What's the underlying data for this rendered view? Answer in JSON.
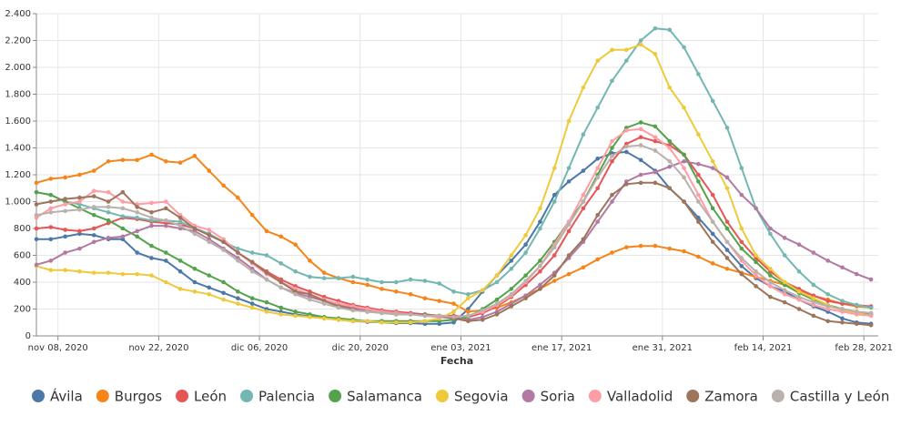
{
  "chart_data": {
    "type": "line",
    "x_label": "Fecha",
    "x": [
      "2020-11-05",
      "2020-11-07",
      "2020-11-09",
      "2020-11-11",
      "2020-11-13",
      "2020-11-15",
      "2020-11-17",
      "2020-11-19",
      "2020-11-21",
      "2020-11-23",
      "2020-11-25",
      "2020-11-27",
      "2020-11-29",
      "2020-12-01",
      "2020-12-03",
      "2020-12-05",
      "2020-12-07",
      "2020-12-09",
      "2020-12-11",
      "2020-12-13",
      "2020-12-15",
      "2020-12-17",
      "2020-12-19",
      "2020-12-21",
      "2020-12-23",
      "2020-12-25",
      "2020-12-27",
      "2020-12-29",
      "2020-12-31",
      "2021-01-02",
      "2021-01-04",
      "2021-01-06",
      "2021-01-08",
      "2021-01-10",
      "2021-01-12",
      "2021-01-14",
      "2021-01-16",
      "2021-01-18",
      "2021-01-20",
      "2021-01-22",
      "2021-01-24",
      "2021-01-26",
      "2021-01-28",
      "2021-01-30",
      "2021-02-01",
      "2021-02-03",
      "2021-02-05",
      "2021-02-07",
      "2021-02-09",
      "2021-02-11",
      "2021-02-13",
      "2021-02-15",
      "2021-02-17",
      "2021-02-19",
      "2021-02-21",
      "2021-02-23",
      "2021-02-25",
      "2021-02-27",
      "2021-03-01"
    ],
    "xlim": [
      "2020-11-05",
      "2021-03-02"
    ],
    "xticks": [
      {
        "value": "2020-11-08",
        "label": "nov 08, 2020"
      },
      {
        "value": "2020-11-22",
        "label": "nov 22, 2020"
      },
      {
        "value": "2020-12-06",
        "label": "dic 06, 2020"
      },
      {
        "value": "2020-12-20",
        "label": "dic 20, 2020"
      },
      {
        "value": "2021-01-03",
        "label": "ene 03, 2021"
      },
      {
        "value": "2021-01-17",
        "label": "ene 17, 2021"
      },
      {
        "value": "2021-01-31",
        "label": "ene 31, 2021"
      },
      {
        "value": "2021-02-14",
        "label": "feb 14, 2021"
      },
      {
        "value": "2021-02-28",
        "label": "feb 28, 2021"
      }
    ],
    "ylim": [
      0,
      2400
    ],
    "yticks": [
      0,
      200,
      400,
      600,
      800,
      {
        "value": 1000,
        "label": "1.000"
      },
      {
        "value": 1200,
        "label": "1.200"
      },
      {
        "value": 1400,
        "label": "1.400"
      },
      {
        "value": 1600,
        "label": "1.600"
      },
      {
        "value": 1800,
        "label": "1.800"
      },
      {
        "value": 2000,
        "label": "2.000"
      },
      {
        "value": 2200,
        "label": "2.200"
      },
      {
        "value": 2400,
        "label": "2.400"
      }
    ],
    "grid": true,
    "legend": "bottom",
    "series": [
      {
        "name": "Ávila",
        "color": "#4c78a8",
        "values": [
          720,
          720,
          740,
          760,
          750,
          720,
          720,
          620,
          580,
          560,
          480,
          400,
          360,
          320,
          280,
          240,
          200,
          180,
          160,
          145,
          130,
          120,
          110,
          105,
          100,
          95,
          95,
          90,
          90,
          100,
          200,
          330,
          450,
          560,
          680,
          850,
          1050,
          1150,
          1230,
          1320,
          1360,
          1370,
          1310,
          1230,
          1100,
          1000,
          880,
          760,
          640,
          520,
          430,
          370,
          330,
          270,
          220,
          180,
          130,
          100,
          90
        ]
      },
      {
        "name": "Burgos",
        "color": "#f58518",
        "values": [
          1140,
          1170,
          1180,
          1200,
          1230,
          1300,
          1310,
          1310,
          1350,
          1300,
          1290,
          1340,
          1230,
          1120,
          1030,
          900,
          780,
          740,
          680,
          560,
          470,
          430,
          400,
          380,
          350,
          330,
          310,
          280,
          260,
          240,
          180,
          190,
          210,
          250,
          300,
          350,
          410,
          460,
          510,
          570,
          620,
          660,
          670,
          670,
          650,
          630,
          590,
          540,
          500,
          470,
          440,
          410,
          380,
          340,
          300,
          270,
          240,
          220,
          210
        ]
      },
      {
        "name": "León",
        "color": "#e45756",
        "values": [
          800,
          810,
          790,
          780,
          800,
          840,
          880,
          870,
          850,
          840,
          830,
          800,
          760,
          700,
          620,
          550,
          480,
          420,
          370,
          330,
          290,
          260,
          230,
          210,
          190,
          180,
          170,
          160,
          150,
          150,
          140,
          170,
          220,
          290,
          380,
          480,
          600,
          780,
          950,
          1100,
          1300,
          1430,
          1480,
          1450,
          1420,
          1350,
          1200,
          1050,
          850,
          700,
          580,
          480,
          400,
          350,
          300,
          260,
          240,
          230,
          220
        ]
      },
      {
        "name": "Palencia",
        "color": "#72b7b2",
        "values": [
          1070,
          1050,
          1000,
          980,
          950,
          920,
          890,
          880,
          860,
          860,
          850,
          800,
          760,
          700,
          650,
          620,
          600,
          540,
          480,
          440,
          430,
          430,
          440,
          420,
          400,
          400,
          420,
          410,
          390,
          330,
          310,
          340,
          400,
          500,
          620,
          800,
          1000,
          1250,
          1500,
          1700,
          1900,
          2050,
          2200,
          2290,
          2280,
          2150,
          1950,
          1750,
          1550,
          1250,
          950,
          760,
          600,
          480,
          380,
          310,
          260,
          230,
          210
        ]
      },
      {
        "name": "Salamanca",
        "color": "#54a24b",
        "values": [
          1070,
          1050,
          1000,
          950,
          900,
          860,
          800,
          740,
          670,
          620,
          560,
          500,
          450,
          400,
          330,
          280,
          250,
          210,
          180,
          160,
          140,
          130,
          120,
          110,
          110,
          110,
          110,
          110,
          110,
          120,
          140,
          200,
          270,
          350,
          450,
          560,
          700,
          850,
          1000,
          1200,
          1400,
          1550,
          1590,
          1560,
          1450,
          1350,
          1150,
          950,
          800,
          650,
          550,
          450,
          380,
          320,
          270,
          230,
          200,
          180,
          160
        ]
      },
      {
        "name": "Segovia",
        "color": "#eeca3b",
        "values": [
          520,
          490,
          490,
          480,
          470,
          470,
          460,
          460,
          450,
          400,
          350,
          330,
          310,
          270,
          240,
          210,
          180,
          160,
          150,
          140,
          130,
          120,
          110,
          110,
          100,
          100,
          100,
          110,
          130,
          180,
          280,
          340,
          450,
          600,
          750,
          950,
          1250,
          1600,
          1850,
          2050,
          2130,
          2130,
          2170,
          2100,
          1850,
          1700,
          1500,
          1300,
          1100,
          800,
          600,
          500,
          400,
          330,
          280,
          230,
          190,
          170,
          150
        ]
      },
      {
        "name": "Soria",
        "color": "#b279a2",
        "values": [
          530,
          560,
          620,
          650,
          700,
          730,
          740,
          780,
          820,
          820,
          800,
          780,
          720,
          650,
          580,
          500,
          420,
          360,
          320,
          290,
          260,
          230,
          210,
          190,
          180,
          170,
          160,
          150,
          140,
          130,
          120,
          140,
          180,
          240,
          300,
          380,
          470,
          580,
          700,
          850,
          1000,
          1150,
          1200,
          1220,
          1260,
          1300,
          1280,
          1250,
          1180,
          1050,
          950,
          800,
          730,
          680,
          620,
          560,
          510,
          460,
          420
        ]
      },
      {
        "name": "Valladolid",
        "color": "#ff9da6",
        "values": [
          880,
          950,
          980,
          1000,
          1080,
          1070,
          1000,
          980,
          990,
          1000,
          900,
          820,
          790,
          720,
          620,
          540,
          460,
          400,
          350,
          310,
          270,
          240,
          220,
          200,
          180,
          170,
          160,
          150,
          140,
          140,
          150,
          180,
          230,
          300,
          400,
          520,
          680,
          850,
          1050,
          1250,
          1450,
          1530,
          1540,
          1480,
          1400,
          1250,
          1050,
          850,
          700,
          560,
          450,
          370,
          310,
          270,
          230,
          200,
          180,
          160,
          150
        ]
      },
      {
        "name": "Zamora",
        "color": "#9d755d",
        "values": [
          980,
          1000,
          1020,
          1030,
          1040,
          1000,
          1070,
          960,
          920,
          950,
          880,
          800,
          750,
          700,
          620,
          550,
          470,
          400,
          330,
          310,
          260,
          220,
          200,
          180,
          170,
          160,
          160,
          160,
          150,
          130,
          110,
          120,
          160,
          220,
          280,
          350,
          450,
          600,
          720,
          900,
          1050,
          1130,
          1140,
          1140,
          1100,
          1000,
          850,
          700,
          580,
          460,
          370,
          290,
          250,
          200,
          150,
          110,
          100,
          90,
          80
        ]
      },
      {
        "name": "Castilla y León",
        "color": "#bab0ac",
        "values": [
          900,
          920,
          930,
          940,
          960,
          960,
          950,
          920,
          880,
          860,
          820,
          760,
          700,
          640,
          560,
          480,
          420,
          360,
          310,
          270,
          240,
          210,
          190,
          180,
          170,
          160,
          160,
          150,
          150,
          140,
          150,
          190,
          240,
          310,
          410,
          520,
          660,
          830,
          1000,
          1180,
          1340,
          1410,
          1420,
          1380,
          1300,
          1180,
          1000,
          850,
          700,
          580,
          480,
          400,
          340,
          290,
          250,
          220,
          200,
          180,
          170
        ]
      }
    ]
  }
}
